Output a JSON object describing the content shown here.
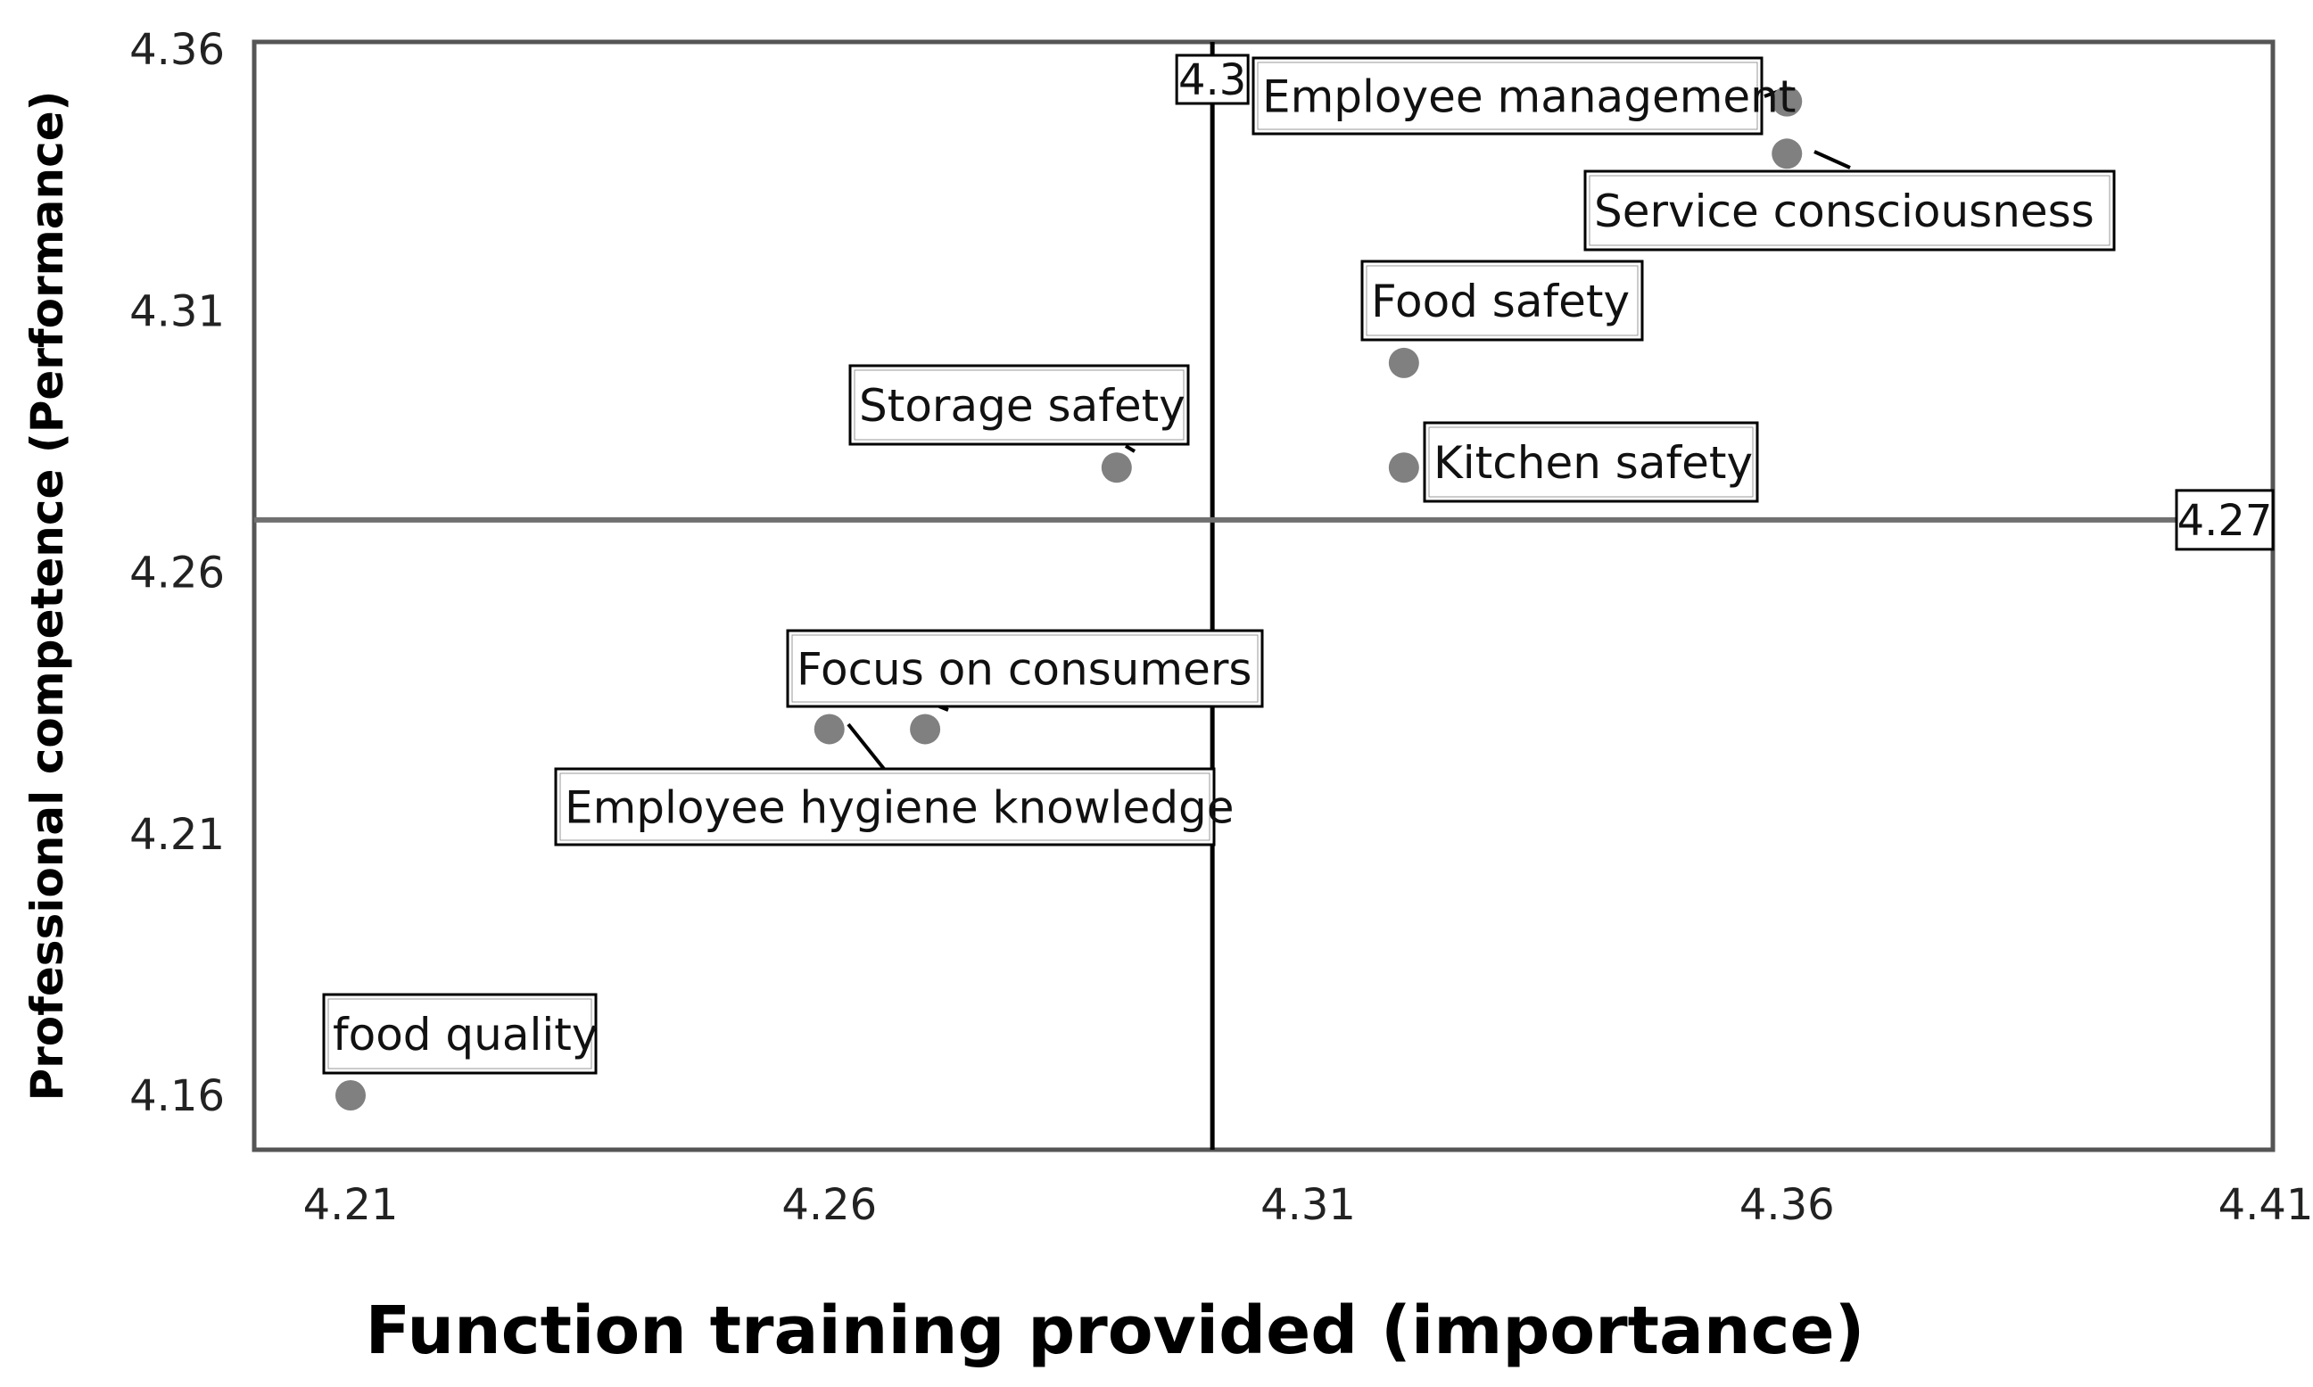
{
  "chart_data": {
    "type": "scatter",
    "title": "",
    "xlabel": "Function training provided (importance)",
    "ylabel": "Professional competence (Performance)",
    "xlim": [
      4.2,
      4.41
    ],
    "ylim": [
      4.151,
      4.36
    ],
    "x_ticks": [
      "4.21",
      "4.26",
      "4.31",
      "4.36",
      "4.41"
    ],
    "y_ticks": [
      "4.36",
      "4.31",
      "4.26",
      "4.21",
      "4.16"
    ],
    "grid": false,
    "legend": "none",
    "marker_color": "#808080",
    "reference_lines": {
      "x_mean": 4.3,
      "x_mean_label": "4.3",
      "y_mean": 4.27,
      "y_mean_label": "4.27",
      "x_line_color": "#000000",
      "y_line_color": "#707070"
    },
    "points": [
      {
        "label": "Employee management",
        "x": 4.36,
        "y": 4.35
      },
      {
        "label": "Service consciousness",
        "x": 4.36,
        "y": 4.34
      },
      {
        "label": "Food safety",
        "x": 4.32,
        "y": 4.3
      },
      {
        "label": "Kitchen safety",
        "x": 4.32,
        "y": 4.28
      },
      {
        "label": "Storage safety",
        "x": 4.29,
        "y": 4.28
      },
      {
        "label": "Focus on consumers",
        "x": 4.27,
        "y": 4.23
      },
      {
        "label": "Employee hygiene knowledge",
        "x": 4.26,
        "y": 4.23
      },
      {
        "label": "food quality",
        "x": 4.21,
        "y": 4.16
      }
    ]
  }
}
